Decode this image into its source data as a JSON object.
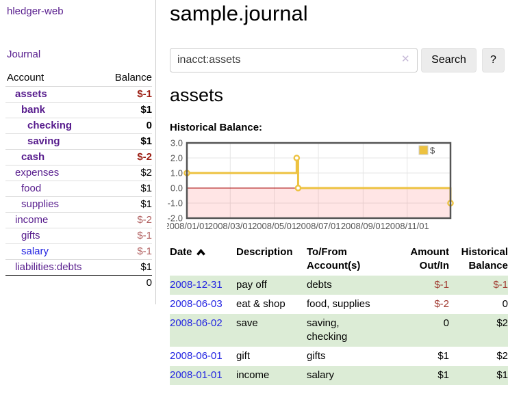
{
  "app": {
    "brand": "hledger-web"
  },
  "sidebar": {
    "journal_link": "Journal",
    "accounts": {
      "headers": {
        "account": "Account",
        "balance": "Balance"
      },
      "rows": [
        {
          "account": "assets",
          "balance": "$-1",
          "indent": 1,
          "bold": true,
          "balance_bold": true,
          "balance_style": "neg-strong",
          "link_color": "purple"
        },
        {
          "account": "bank",
          "balance": "$1",
          "indent": 2,
          "bold": true,
          "balance_bold": true,
          "balance_style": "normal",
          "link_color": "purple"
        },
        {
          "account": "checking",
          "balance": "0",
          "indent": 3,
          "bold": true,
          "balance_bold": true,
          "balance_style": "normal",
          "link_color": "purple"
        },
        {
          "account": "saving",
          "balance": "$1",
          "indent": 3,
          "bold": true,
          "balance_bold": true,
          "balance_style": "normal",
          "link_color": "purple"
        },
        {
          "account": "cash",
          "balance": "$-2",
          "indent": 2,
          "bold": true,
          "balance_bold": true,
          "balance_style": "neg-strong",
          "link_color": "purple"
        },
        {
          "account": "expenses",
          "balance": "$2",
          "indent": 1,
          "bold": false,
          "balance_bold": false,
          "balance_style": "normal",
          "link_color": "purple"
        },
        {
          "account": "food",
          "balance": "$1",
          "indent": 2,
          "bold": false,
          "balance_bold": false,
          "balance_style": "normal",
          "link_color": "purple"
        },
        {
          "account": "supplies",
          "balance": "$1",
          "indent": 2,
          "bold": false,
          "balance_bold": false,
          "balance_style": "normal",
          "link_color": "purple"
        },
        {
          "account": "income",
          "balance": "$-2",
          "indent": 1,
          "bold": false,
          "balance_bold": false,
          "balance_style": "neg",
          "link_color": "purple"
        },
        {
          "account": "gifts",
          "balance": "$-1",
          "indent": 2,
          "bold": false,
          "balance_bold": false,
          "balance_style": "neg",
          "link_color": "purple"
        },
        {
          "account": "salary",
          "balance": "$-1",
          "indent": 2,
          "bold": false,
          "balance_bold": false,
          "balance_style": "neg",
          "link_color": "blue"
        },
        {
          "account": "liabilities:debts",
          "balance": "$1",
          "indent": 1,
          "bold": false,
          "balance_bold": false,
          "balance_style": "normal",
          "link_color": "purple"
        }
      ],
      "total": "0"
    }
  },
  "header": {
    "title": "sample.journal"
  },
  "search": {
    "value": "inacct:assets",
    "clear_label": "✕",
    "button_label": "Search",
    "help_label": "?"
  },
  "main": {
    "account_title": "assets",
    "chart_label": "Historical Balance:"
  },
  "chart_data": {
    "type": "line",
    "title": "Historical Balance",
    "step": true,
    "legend": "$",
    "legend_position": "top-right",
    "grid": true,
    "line_color": "#edc240",
    "marker_fill": "#ffffff",
    "zero_line_color": "#a40000",
    "negative_region_color": "rgba(255,70,70,0.14)",
    "border_color": "#545454",
    "grid_color": "#e5e5e5",
    "tick_label_color": "#545454",
    "ylim": [
      -2,
      3
    ],
    "x_range_days": [
      0,
      365
    ],
    "y_ticks": [
      {
        "v": 3,
        "label": "3.0"
      },
      {
        "v": 2,
        "label": "2.0"
      },
      {
        "v": 1,
        "label": "1.0"
      },
      {
        "v": 0,
        "label": "0.0"
      },
      {
        "v": -1,
        "label": "-1.0"
      },
      {
        "v": -2,
        "label": "-2.0"
      }
    ],
    "x_ticks": [
      {
        "day": 0,
        "label": "2008/01/01"
      },
      {
        "day": 60,
        "label": "2008/03/01"
      },
      {
        "day": 121,
        "label": "2008/05/01"
      },
      {
        "day": 182,
        "label": "2008/07/01"
      },
      {
        "day": 244,
        "label": "2008/09/01"
      },
      {
        "day": 305,
        "label": "2008/11/01"
      }
    ],
    "series": [
      {
        "name": "$",
        "points": [
          {
            "date": "2008-01-01",
            "day": 0,
            "value": 1
          },
          {
            "date": "2008-06-01",
            "day": 152,
            "value": 2
          },
          {
            "date": "2008-06-03",
            "day": 154,
            "value": 0
          },
          {
            "date": "2008-12-31",
            "day": 365,
            "value": -1
          }
        ]
      }
    ]
  },
  "register": {
    "headers": {
      "date": "Date",
      "description": "Description",
      "accounts": "To/From Account(s)",
      "amount": "Amount Out/In",
      "balance": "Historical Balance"
    },
    "sort_icon": "ascending",
    "rows": [
      {
        "date": "2008-12-31",
        "description": "pay off",
        "accounts": "debts",
        "amount": "$-1",
        "balance": "$-1",
        "amount_negative": true,
        "balance_negative": true,
        "stripe": true,
        "wrap_accounts": false
      },
      {
        "date": "2008-06-03",
        "description": "eat & shop",
        "accounts": "food, supplies",
        "amount": "$-2",
        "balance": "0",
        "amount_negative": true,
        "balance_negative": false,
        "stripe": false,
        "wrap_accounts": false
      },
      {
        "date": "2008-06-02",
        "description": "save",
        "accounts": "saving, checking",
        "amount": "0",
        "balance": "$2",
        "amount_negative": false,
        "balance_negative": false,
        "stripe": true,
        "wrap_accounts": true
      },
      {
        "date": "2008-06-01",
        "description": "gift",
        "accounts": "gifts",
        "amount": "$1",
        "balance": "$2",
        "amount_negative": false,
        "balance_negative": false,
        "stripe": false,
        "wrap_accounts": false
      },
      {
        "date": "2008-01-01",
        "description": "income",
        "accounts": "salary",
        "amount": "$1",
        "balance": "$1",
        "amount_negative": false,
        "balance_negative": false,
        "stripe": true,
        "wrap_accounts": false
      }
    ],
    "colors": {
      "date_link": "#2324e2",
      "negative": "#a03a30",
      "stripe_bg": "#dcecd6"
    }
  }
}
